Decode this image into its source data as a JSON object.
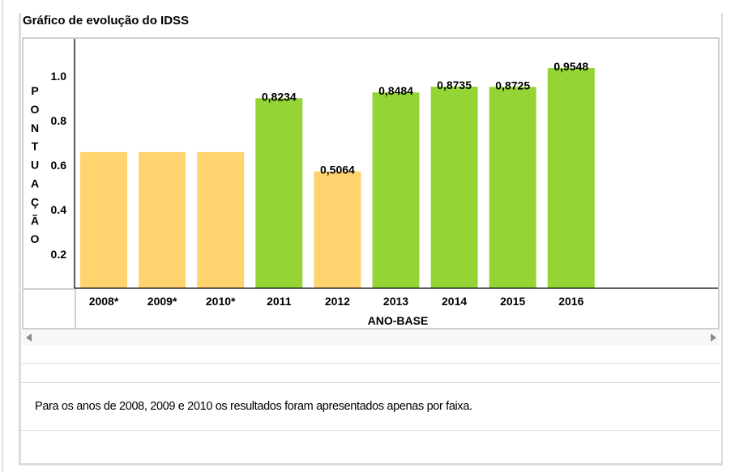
{
  "title": "Gráfico de evolução do IDSS",
  "note": "Para os anos de 2008, 2009 e 2010 os resultados foram apresentados apenas por faixa.",
  "scrollbar": {
    "left_icon": "arrow-left-icon",
    "right_icon": "arrow-right-icon"
  },
  "colors": {
    "faixa": "#FFD46E",
    "value": "#94D535",
    "axis": "#000000"
  },
  "chart_data": {
    "type": "bar",
    "title": "Gráfico de evolução do IDSS",
    "xlabel": "ANO-BASE",
    "ylabel": "PONTUAÇÃO",
    "ylabel_letters": [
      "P",
      "O",
      "N",
      "T",
      "U",
      "A",
      "Ç",
      "Ã",
      "O"
    ],
    "yticks": [
      "1.0",
      "0.8",
      "0.6",
      "0.4",
      "0.2"
    ],
    "ylim": [
      0,
      1.0
    ],
    "grid": false,
    "legend": "none",
    "categories": [
      "2008*",
      "2009*",
      "2010*",
      "2011",
      "2012",
      "2013",
      "2014",
      "2015",
      "2016"
    ],
    "values": [
      0.59,
      0.59,
      0.59,
      0.8234,
      0.5064,
      0.8484,
      0.8735,
      0.8725,
      0.9548
    ],
    "value_labels": [
      "",
      "",
      "",
      "0,8234",
      "0,5064",
      "0,8484",
      "0,8735",
      "0,8725",
      "0,9548"
    ],
    "bar_kind": [
      "faixa",
      "faixa",
      "faixa",
      "value",
      "faixa",
      "value",
      "value",
      "value",
      "value"
    ]
  }
}
